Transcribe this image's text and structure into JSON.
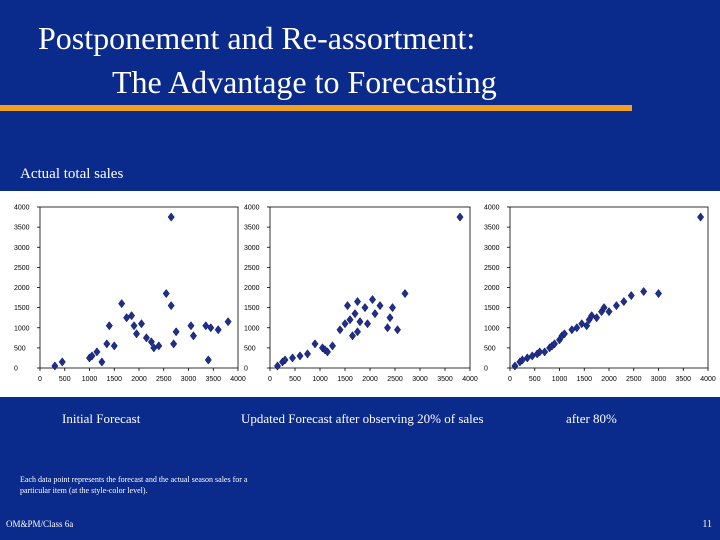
{
  "slide": {
    "title_line1": "Postponement and Re-assortment:",
    "title_line2": "The Advantage to Forecasting",
    "subtitle": "Actual total sales",
    "captions": [
      "Initial Forecast",
      "Updated Forecast after observing 20% of sales",
      "after 80%"
    ],
    "note": "Each data point represents the forecast and the actual season sales for a particular item (at the style-color level).",
    "footer_left": "OM&PM/Class 6a",
    "page_number": "11",
    "colors": {
      "background": "#0a2a8c",
      "title_rule": "#f0a021",
      "marker": "#1f2f8a"
    }
  },
  "chart_data": [
    {
      "type": "scatter",
      "title": "",
      "xlabel": "",
      "ylabel": "",
      "xlim": [
        0,
        4000
      ],
      "ylim": [
        0,
        4000
      ],
      "xticks": [
        "0",
        "500",
        "1000",
        "1500",
        "2000",
        "2500",
        "3000",
        "3500",
        "4000"
      ],
      "yticks": [
        "0",
        "500",
        "1000",
        "1500",
        "2000",
        "2500",
        "3000",
        "3500",
        "4000"
      ],
      "grid": false,
      "x": [
        300,
        450,
        1000,
        1050,
        1150,
        1250,
        1350,
        1400,
        1500,
        1650,
        1750,
        1850,
        1900,
        1950,
        2050,
        2150,
        2250,
        2300,
        2400,
        2550,
        2650,
        2700,
        2750,
        3050,
        3100,
        3350,
        3400,
        3450,
        3600,
        3800,
        2650
      ],
      "y": [
        50,
        150,
        250,
        300,
        400,
        150,
        600,
        1050,
        550,
        1600,
        1250,
        1300,
        1050,
        850,
        1100,
        750,
        650,
        500,
        550,
        1850,
        1550,
        600,
        900,
        1050,
        800,
        1050,
        200,
        1000,
        950,
        1150,
        3750
      ]
    },
    {
      "type": "scatter",
      "title": "",
      "xlabel": "",
      "ylabel": "",
      "xlim": [
        0,
        4000
      ],
      "ylim": [
        0,
        4000
      ],
      "xticks": [
        "0",
        "500",
        "1000",
        "1500",
        "2000",
        "2500",
        "3000",
        "3500",
        "4000"
      ],
      "yticks": [
        "0",
        "500",
        "1000",
        "1500",
        "2000",
        "2500",
        "3000",
        "3500",
        "4000"
      ],
      "grid": false,
      "x": [
        150,
        250,
        300,
        450,
        600,
        750,
        900,
        1050,
        1100,
        1150,
        1250,
        1400,
        1500,
        1550,
        1600,
        1650,
        1700,
        1750,
        1750,
        1800,
        1900,
        1950,
        2050,
        2100,
        2200,
        2350,
        2400,
        2450,
        2550,
        2700,
        3800
      ],
      "y": [
        50,
        150,
        200,
        250,
        300,
        350,
        600,
        500,
        450,
        400,
        550,
        950,
        1100,
        1550,
        1200,
        800,
        1350,
        1650,
        900,
        1150,
        1500,
        1100,
        1700,
        1350,
        1550,
        1000,
        1250,
        1500,
        950,
        1850,
        3750
      ]
    },
    {
      "type": "scatter",
      "title": "",
      "xlabel": "",
      "ylabel": "",
      "xlim": [
        0,
        4000
      ],
      "ylim": [
        0,
        4000
      ],
      "xticks": [
        "0",
        "500",
        "1000",
        "1500",
        "2000",
        "2500",
        "3000",
        "3500",
        "4000"
      ],
      "yticks": [
        "0",
        "500",
        "1000",
        "1500",
        "2000",
        "2500",
        "3000",
        "3500",
        "4000"
      ],
      "grid": false,
      "x": [
        100,
        200,
        250,
        350,
        450,
        550,
        600,
        700,
        800,
        850,
        900,
        1000,
        1050,
        1100,
        1250,
        1350,
        1450,
        1550,
        1600,
        1650,
        1750,
        1850,
        1900,
        2000,
        2150,
        2300,
        2450,
        2700,
        3000,
        3850
      ],
      "y": [
        50,
        150,
        200,
        250,
        300,
        350,
        400,
        400,
        500,
        550,
        600,
        700,
        800,
        850,
        950,
        1000,
        1100,
        1050,
        1200,
        1300,
        1250,
        1400,
        1500,
        1400,
        1550,
        1650,
        1800,
        1900,
        1850,
        3750
      ]
    }
  ]
}
